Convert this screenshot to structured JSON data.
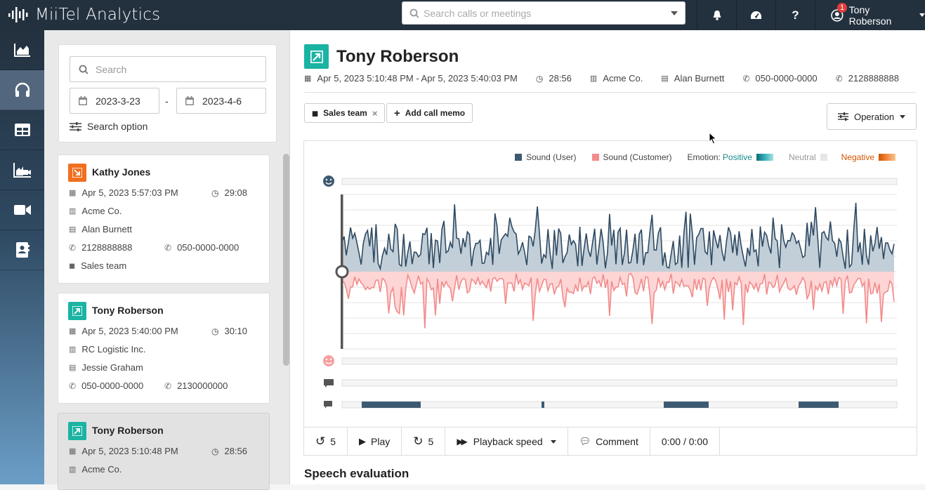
{
  "app": {
    "name": "MiiTel Analytics"
  },
  "topbar": {
    "search_placeholder": "Search calls or meetings",
    "notification_count": "1",
    "user_name": "Tony Roberson",
    "icons": [
      "bell-icon",
      "dashboard-icon",
      "help-icon",
      "user-icon"
    ]
  },
  "sidenav": {
    "items": [
      "analytics",
      "calls",
      "tables",
      "meeting-analytics",
      "video",
      "contacts"
    ],
    "active": "calls"
  },
  "filter": {
    "search_placeholder": "Search",
    "date_from": "2023-3-23",
    "date_to": "2023-4-6",
    "separator": "-",
    "search_option_label": "Search option"
  },
  "calls": [
    {
      "name": "Kathy Jones",
      "direction": "incoming",
      "datetime": "Apr 5, 2023 5:57:03 PM",
      "duration": "29:08",
      "company": "Acme Co.",
      "contact": "Alan Burnett",
      "from": "2128888888",
      "to": "050-0000-0000",
      "tag": "Sales team"
    },
    {
      "name": "Tony Roberson",
      "direction": "outgoing",
      "datetime": "Apr 5, 2023 5:40:00 PM",
      "duration": "30:10",
      "company": "RC Logistic Inc.",
      "contact": "Jessie Graham",
      "from": "050-0000-0000",
      "to": "2130000000"
    },
    {
      "name": "Tony Roberson",
      "direction": "outgoing",
      "datetime": "Apr 5, 2023 5:10:48 PM",
      "duration": "28:56",
      "company": "Acme Co.",
      "selected": true
    }
  ],
  "detail": {
    "title": "Tony Roberson",
    "datetime_range": "Apr 5, 2023 5:10:48 PM - Apr 5, 2023 5:40:03 PM",
    "duration": "28:56",
    "company": "Acme Co.",
    "contact": "Alan Burnett",
    "phone_from": "050-0000-0000",
    "phone_to": "2128888888",
    "tag": "Sales team",
    "add_memo_label": "Add call memo",
    "operation_label": "Operation",
    "section_title": "Speech evaluation"
  },
  "chart": {
    "legend_user": "Sound (User)",
    "legend_customer": "Sound (Customer)",
    "emotion_label": "Emotion:",
    "positive": "Positive",
    "neutral": "Neutral",
    "negative": "Negative",
    "colors": {
      "user": "#3d5a73",
      "customer": "#f28b8b",
      "positive": "#1a8a8a",
      "negative": "#d35400"
    }
  },
  "player": {
    "rewind_seconds": "5",
    "play_label": "Play",
    "forward_seconds": "5",
    "speed_label": "Playback speed",
    "comment_label": "Comment",
    "time": "0:00 / 0:00"
  }
}
